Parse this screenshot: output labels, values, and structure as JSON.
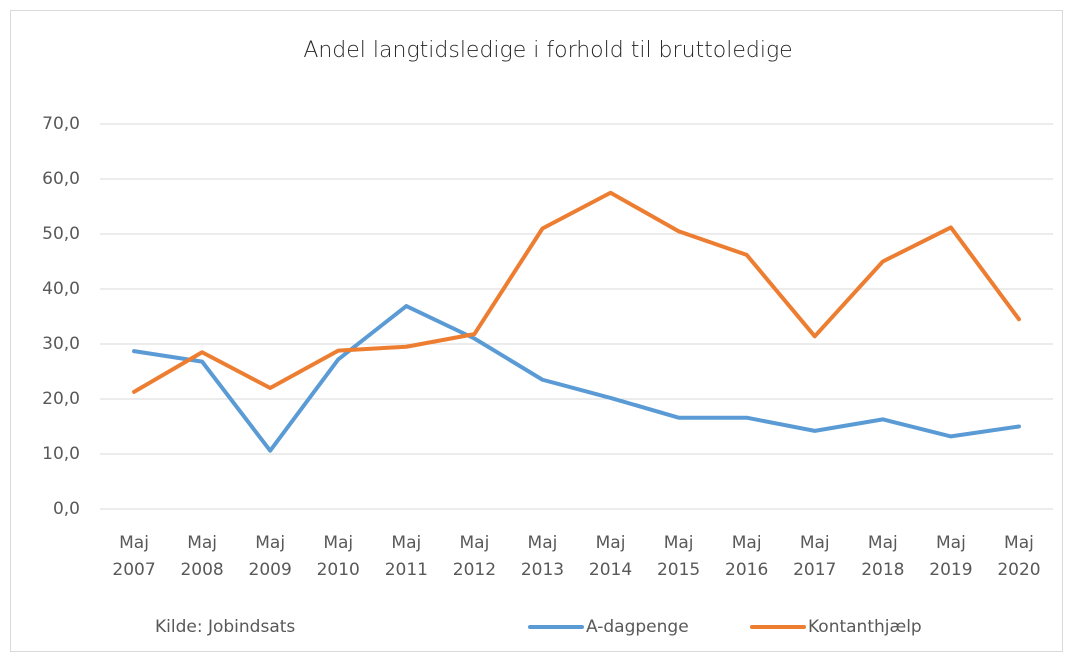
{
  "chart_data": {
    "type": "line",
    "title": "Andel langtidsledige i forhold til bruttoledige",
    "annotation": "Kilde: Jobindsats",
    "categories": [
      "Maj 2007",
      "Maj 2008",
      "Maj 2009",
      "Maj 2010",
      "Maj 2011",
      "Maj 2012",
      "Maj 2013",
      "Maj 2014",
      "Maj 2015",
      "Maj 2016",
      "Maj 2017",
      "Maj 2018",
      "Maj 2019",
      "Maj 2020"
    ],
    "series": [
      {
        "name": "A-dagpenge",
        "color": "#5b9bd5",
        "values": [
          28.7,
          26.8,
          10.6,
          27.2,
          36.9,
          31.0,
          23.5,
          20.2,
          16.6,
          16.6,
          14.2,
          16.3,
          13.2,
          15.0
        ]
      },
      {
        "name": "Kontanthjælp",
        "color": "#ed7d31",
        "values": [
          21.3,
          28.5,
          22.0,
          28.8,
          29.5,
          31.8,
          51.0,
          57.5,
          50.5,
          46.2,
          31.4,
          45.0,
          51.2,
          34.5
        ]
      }
    ],
    "ylim": [
      0,
      70
    ],
    "yticks": [
      {
        "value": 0,
        "label": "0,0"
      },
      {
        "value": 10,
        "label": "10,0"
      },
      {
        "value": 20,
        "label": "20,0"
      },
      {
        "value": 30,
        "label": "30,0"
      },
      {
        "value": 40,
        "label": "40,0"
      },
      {
        "value": 50,
        "label": "50,0"
      },
      {
        "value": 60,
        "label": "60,0"
      },
      {
        "value": 70,
        "label": "70,0"
      }
    ],
    "grid": true,
    "legend": "bottom"
  }
}
